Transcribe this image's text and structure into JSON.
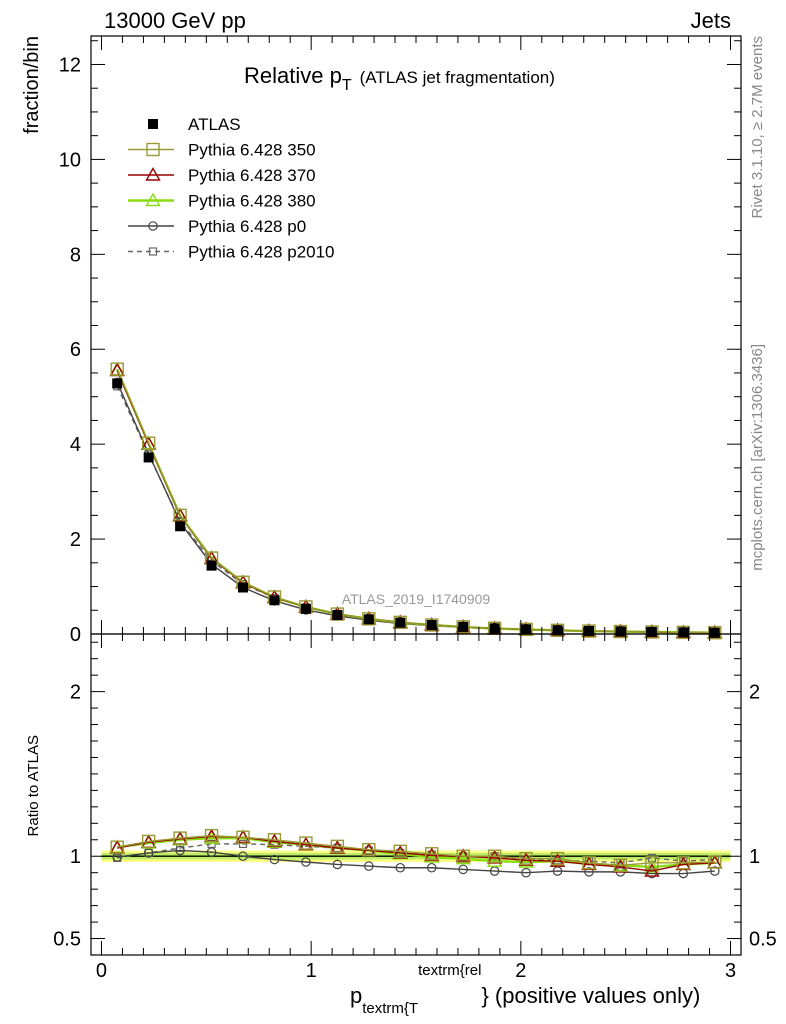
{
  "header": {
    "left": "13000 GeV pp",
    "right": "Jets"
  },
  "title": {
    "main": "Relative p",
    "sub": "T",
    "rest": "(ATLAS jet fragmentation)"
  },
  "side_labels": {
    "rivet": "Rivet 3.1.10, ≥ 2.7M events",
    "mcplots": "mcplots.cern.ch [arXiv:1306.3436]"
  },
  "analysis_id": "ATLAS_2019_I1740909",
  "xlabel": {
    "p": "p",
    "sub": "textrm{T",
    "sup": "textrm{rel",
    "tail": "} (positive values only)"
  },
  "colors": {
    "atlas": "#000000",
    "p350": "#999933",
    "p370": "#990000",
    "p380": "#88dd11",
    "p0": "#444444",
    "p2010": "#666666",
    "band_outer": "#ffff88",
    "band_inner": "#bbee66"
  },
  "chart_data": [
    {
      "type": "line",
      "panel": "main",
      "ylabel": "fraction/bin",
      "xlim": [
        -0.05,
        3.05
      ],
      "ylim": [
        0,
        12.6
      ],
      "yticks": [
        0,
        2,
        4,
        6,
        8,
        10,
        12
      ],
      "x": [
        0.075,
        0.225,
        0.375,
        0.525,
        0.675,
        0.825,
        0.975,
        1.125,
        1.275,
        1.425,
        1.575,
        1.725,
        1.875,
        2.025,
        2.175,
        2.325,
        2.475,
        2.625,
        2.775,
        2.925
      ],
      "series": [
        {
          "name": "ATLAS",
          "key": "atlas",
          "marker": "filled-square",
          "values": [
            5.28,
            3.72,
            2.27,
            1.44,
            0.98,
            0.71,
            0.53,
            0.4,
            0.31,
            0.24,
            0.19,
            0.15,
            0.12,
            0.1,
            0.08,
            0.065,
            0.055,
            0.045,
            0.035,
            0.028
          ]
        },
        {
          "name": "Pythia 6.428 350",
          "key": "p350",
          "marker": "open-square",
          "values": [
            5.58,
            4.02,
            2.5,
            1.6,
            1.09,
            0.78,
            0.57,
            0.42,
            0.32,
            0.245,
            0.19,
            0.15,
            0.12,
            0.098,
            0.078,
            0.062,
            0.052,
            0.043,
            0.034,
            0.027
          ]
        },
        {
          "name": "Pythia 6.428 370",
          "key": "p370",
          "marker": "open-triangle",
          "values": [
            5.55,
            4.0,
            2.49,
            1.59,
            1.08,
            0.77,
            0.57,
            0.42,
            0.32,
            0.245,
            0.19,
            0.15,
            0.118,
            0.097,
            0.077,
            0.06,
            0.051,
            0.042,
            0.033,
            0.027
          ]
        },
        {
          "name": "Pythia 6.428 380",
          "key": "p380",
          "marker": "open-triangle",
          "values": [
            5.57,
            4.01,
            2.5,
            1.6,
            1.09,
            0.77,
            0.57,
            0.42,
            0.32,
            0.24,
            0.19,
            0.148,
            0.115,
            0.095,
            0.077,
            0.062,
            0.052,
            0.043,
            0.034,
            0.027
          ]
        },
        {
          "name": "Pythia 6.428 p0",
          "key": "p0",
          "marker": "open-circle",
          "values": [
            5.3,
            3.8,
            2.35,
            1.47,
            0.98,
            0.7,
            0.51,
            0.38,
            0.29,
            0.22,
            0.175,
            0.138,
            0.108,
            0.088,
            0.072,
            0.058,
            0.049,
            0.04,
            0.031,
            0.025
          ]
        },
        {
          "name": "Pythia 6.428 p2010",
          "key": "p2010",
          "marker": "open-small-square",
          "dashed": true,
          "values": [
            5.22,
            3.78,
            2.38,
            1.54,
            1.05,
            0.76,
            0.56,
            0.42,
            0.32,
            0.245,
            0.19,
            0.15,
            0.12,
            0.098,
            0.078,
            0.063,
            0.053,
            0.044,
            0.034,
            0.027
          ]
        }
      ]
    },
    {
      "type": "line",
      "panel": "ratio",
      "ylabel": "Ratio to ATLAS",
      "xlabel": "p_{textrm{T}}^{textrm{rel}} (positive values only)",
      "xlim": [
        -0.05,
        3.05
      ],
      "ylim": [
        0.4,
        2.35
      ],
      "yticks": [
        0.5,
        1,
        2
      ],
      "yticklabels": [
        "0.5",
        "1",
        "2"
      ],
      "xticks": [
        0,
        1,
        2,
        3
      ],
      "x": [
        0.075,
        0.225,
        0.375,
        0.525,
        0.675,
        0.825,
        0.975,
        1.125,
        1.275,
        1.425,
        1.575,
        1.725,
        1.875,
        2.025,
        2.175,
        2.325,
        2.475,
        2.625,
        2.775,
        2.925
      ],
      "band": {
        "inner": 0.02,
        "outer": 0.035
      },
      "series": [
        {
          "name": "Pythia 6.428 350",
          "key": "p350",
          "marker": "open-square",
          "values": [
            1.055,
            1.09,
            1.11,
            1.125,
            1.115,
            1.1,
            1.08,
            1.06,
            1.04,
            1.03,
            1.015,
            1.0,
            1.0,
            0.985,
            0.985,
            0.96,
            0.945,
            0.96,
            0.96,
            0.965
          ]
        },
        {
          "name": "Pythia 6.428 370",
          "key": "p370",
          "marker": "open-triangle",
          "values": [
            1.05,
            1.085,
            1.105,
            1.12,
            1.115,
            1.09,
            1.07,
            1.05,
            1.035,
            1.02,
            1.005,
            1.0,
            0.99,
            0.975,
            0.97,
            0.95,
            0.935,
            0.91,
            0.95,
            0.96
          ]
        },
        {
          "name": "Pythia 6.428 380",
          "key": "p380",
          "marker": "open-triangle",
          "values": [
            1.055,
            1.08,
            1.1,
            1.11,
            1.11,
            1.085,
            1.07,
            1.05,
            1.035,
            1.015,
            0.995,
            0.985,
            0.97,
            0.965,
            0.97,
            0.955,
            0.945,
            0.935,
            0.95,
            0.96
          ]
        },
        {
          "name": "Pythia 6.428 p0",
          "key": "p0",
          "marker": "open-circle",
          "values": [
            0.995,
            1.02,
            1.035,
            1.025,
            1.0,
            0.98,
            0.965,
            0.95,
            0.94,
            0.93,
            0.93,
            0.92,
            0.91,
            0.9,
            0.91,
            0.905,
            0.905,
            0.895,
            0.895,
            0.91
          ]
        },
        {
          "name": "Pythia 6.428 p2010",
          "key": "p2010",
          "marker": "open-small-square",
          "dashed": true,
          "values": [
            0.99,
            1.02,
            1.05,
            1.075,
            1.075,
            1.07,
            1.06,
            1.05,
            1.035,
            1.02,
            1.01,
            1.0,
            1.0,
            0.98,
            0.975,
            0.97,
            0.96,
            0.99,
            0.97,
            0.98
          ]
        }
      ]
    }
  ]
}
